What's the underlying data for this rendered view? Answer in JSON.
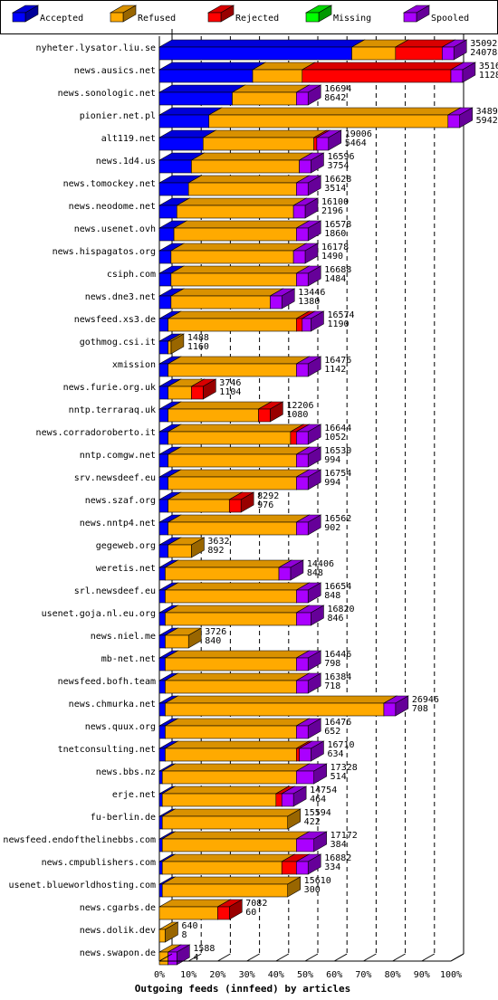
{
  "chart_data": {
    "type": "bar",
    "stacked": true,
    "orientation": "horizontal",
    "title": "Outgoing feeds (innfeed) by articles",
    "xlim": [
      0,
      100
    ],
    "x_ticks": [
      "0%",
      "10%",
      "20%",
      "30%",
      "40%",
      "50%",
      "60%",
      "70%",
      "80%",
      "90%",
      "100%"
    ],
    "legend_position": "top",
    "legend": [
      {
        "name": "Accepted",
        "color": "#0000ff"
      },
      {
        "name": "Refused",
        "color": "#ffaa00"
      },
      {
        "name": "Rejected",
        "color": "#ff0000"
      },
      {
        "name": "Missing",
        "color": "#00ff00"
      },
      {
        "name": "Spooled",
        "color": "#aa00ff"
      }
    ],
    "rows": [
      {
        "host": "nyheter.lysator.liu.se",
        "total": "35092",
        "accepted_count": "24078",
        "accepted": 66,
        "refused": 15,
        "rejected": 16,
        "spooled": 4
      },
      {
        "host": "news.ausics.net",
        "total": "35164",
        "accepted_count": "11288",
        "accepted": 32,
        "refused": 17,
        "rejected": 51,
        "spooled": 4
      },
      {
        "host": "news.sonologic.net",
        "total": "16694",
        "accepted_count": "8642",
        "accepted": 25,
        "refused": 22,
        "rejected": 0,
        "spooled": 4
      },
      {
        "host": "pionier.net.pl",
        "total": "34894",
        "accepted_count": "5942",
        "accepted": 17,
        "refused": 82,
        "rejected": 0,
        "spooled": 4
      },
      {
        "host": "alt119.net",
        "total": "19006",
        "accepted_count": "5464",
        "accepted": 15,
        "refused": 38,
        "rejected": 1,
        "spooled": 4
      },
      {
        "host": "news.1d4.us",
        "total": "16596",
        "accepted_count": "3754",
        "accepted": 11,
        "refused": 37,
        "rejected": 0,
        "spooled": 4
      },
      {
        "host": "news.tomockey.net",
        "total": "16628",
        "accepted_count": "3514",
        "accepted": 10,
        "refused": 37,
        "rejected": 0,
        "spooled": 4
      },
      {
        "host": "news.neodome.net",
        "total": "16100",
        "accepted_count": "2196",
        "accepted": 6,
        "refused": 40,
        "rejected": 0,
        "spooled": 4
      },
      {
        "host": "news.usenet.ovh",
        "total": "16578",
        "accepted_count": "1860",
        "accepted": 5,
        "refused": 42,
        "rejected": 0,
        "spooled": 4
      },
      {
        "host": "news.hispagatos.org",
        "total": "16178",
        "accepted_count": "1490",
        "accepted": 4,
        "refused": 42,
        "rejected": 0,
        "spooled": 4
      },
      {
        "host": "csiph.com",
        "total": "16688",
        "accepted_count": "1484",
        "accepted": 4,
        "refused": 43,
        "rejected": 0,
        "spooled": 4
      },
      {
        "host": "news.dne3.net",
        "total": "13446",
        "accepted_count": "1380",
        "accepted": 4,
        "refused": 34,
        "rejected": 0,
        "spooled": 4
      },
      {
        "host": "newsfeed.xs3.de",
        "total": "16574",
        "accepted_count": "1190",
        "accepted": 3,
        "refused": 44,
        "rejected": 2,
        "spooled": 3
      },
      {
        "host": "gothmog.csi.it",
        "total": "1488",
        "accepted_count": "1160",
        "accepted": 3,
        "refused": 1,
        "rejected": 0,
        "spooled": 0
      },
      {
        "host": "xmission",
        "total": "16476",
        "accepted_count": "1142",
        "accepted": 3,
        "refused": 44,
        "rejected": 0,
        "spooled": 4
      },
      {
        "host": "news.furie.org.uk",
        "total": "3746",
        "accepted_count": "1104",
        "accepted": 3,
        "refused": 8,
        "rejected": 4,
        "spooled": 0
      },
      {
        "host": "nntp.terraraq.uk",
        "total": "12206",
        "accepted_count": "1080",
        "accepted": 3,
        "refused": 31,
        "rejected": 4,
        "spooled": 0
      },
      {
        "host": "news.corradoroberto.it",
        "total": "16644",
        "accepted_count": "1052",
        "accepted": 3,
        "refused": 42,
        "rejected": 2,
        "spooled": 4
      },
      {
        "host": "nntp.comgw.net",
        "total": "16530",
        "accepted_count": "994",
        "accepted": 3,
        "refused": 44,
        "rejected": 0,
        "spooled": 4
      },
      {
        "host": "srv.newsdeef.eu",
        "total": "16754",
        "accepted_count": "994",
        "accepted": 3,
        "refused": 44,
        "rejected": 0,
        "spooled": 4
      },
      {
        "host": "news.szaf.org",
        "total": "8292",
        "accepted_count": "976",
        "accepted": 3,
        "refused": 21,
        "rejected": 4,
        "spooled": 0
      },
      {
        "host": "news.nntp4.net",
        "total": "16562",
        "accepted_count": "902",
        "accepted": 3,
        "refused": 44,
        "rejected": 0,
        "spooled": 4
      },
      {
        "host": "gegeweb.org",
        "total": "3632",
        "accepted_count": "892",
        "accepted": 3,
        "refused": 8,
        "rejected": 0,
        "spooled": 0
      },
      {
        "host": "weretis.net",
        "total": "14406",
        "accepted_count": "848",
        "accepted": 2,
        "refused": 39,
        "rejected": 0,
        "spooled": 4
      },
      {
        "host": "srl.newsdeef.eu",
        "total": "16654",
        "accepted_count": "848",
        "accepted": 2,
        "refused": 45,
        "rejected": 0,
        "spooled": 4
      },
      {
        "host": "usenet.goja.nl.eu.org",
        "total": "16820",
        "accepted_count": "846",
        "accepted": 2,
        "refused": 45,
        "rejected": 0,
        "spooled": 5
      },
      {
        "host": "news.niel.me",
        "total": "3726",
        "accepted_count": "840",
        "accepted": 2,
        "refused": 8,
        "rejected": 0,
        "spooled": 0
      },
      {
        "host": "mb-net.net",
        "total": "16446",
        "accepted_count": "798",
        "accepted": 2,
        "refused": 45,
        "rejected": 0,
        "spooled": 4
      },
      {
        "host": "newsfeed.bofh.team",
        "total": "16384",
        "accepted_count": "718",
        "accepted": 2,
        "refused": 45,
        "rejected": 0,
        "spooled": 4
      },
      {
        "host": "news.chmurka.net",
        "total": "26946",
        "accepted_count": "708",
        "accepted": 2,
        "refused": 75,
        "rejected": 0,
        "spooled": 4
      },
      {
        "host": "news.quux.org",
        "total": "16476",
        "accepted_count": "652",
        "accepted": 2,
        "refused": 45,
        "rejected": 0,
        "spooled": 4
      },
      {
        "host": "tnetconsulting.net",
        "total": "16710",
        "accepted_count": "634",
        "accepted": 2,
        "refused": 45,
        "rejected": 1,
        "spooled": 4
      },
      {
        "host": "news.bbs.nz",
        "total": "17328",
        "accepted_count": "514",
        "accepted": 1,
        "refused": 46,
        "rejected": 0,
        "spooled": 6
      },
      {
        "host": "erje.net",
        "total": "14754",
        "accepted_count": "464",
        "accepted": 1,
        "refused": 39,
        "rejected": 2,
        "spooled": 4
      },
      {
        "host": "fu-berlin.de",
        "total": "15594",
        "accepted_count": "422",
        "accepted": 1,
        "refused": 43,
        "rejected": 0,
        "spooled": 0
      },
      {
        "host": "newsfeed.endofthelinebbs.com",
        "total": "17172",
        "accepted_count": "384",
        "accepted": 1,
        "refused": 46,
        "rejected": 0,
        "spooled": 6
      },
      {
        "host": "news.cmpublishers.com",
        "total": "16882",
        "accepted_count": "334",
        "accepted": 1,
        "refused": 41,
        "rejected": 5,
        "spooled": 4
      },
      {
        "host": "usenet.blueworldhosting.com",
        "total": "15610",
        "accepted_count": "300",
        "accepted": 1,
        "refused": 43,
        "rejected": 0,
        "spooled": 0
      },
      {
        "host": "news.cgarbs.de",
        "total": "7082",
        "accepted_count": "60",
        "accepted": 0,
        "refused": 20,
        "rejected": 4,
        "spooled": 0
      },
      {
        "host": "news.dolik.dev",
        "total": "640",
        "accepted_count": "8",
        "accepted": 0,
        "refused": 2,
        "rejected": 0,
        "spooled": 0
      },
      {
        "host": "news.swapon.de",
        "total": "1588",
        "accepted_count": "4",
        "accepted": 0,
        "refused": 3,
        "rejected": 0,
        "spooled": 3
      }
    ]
  }
}
